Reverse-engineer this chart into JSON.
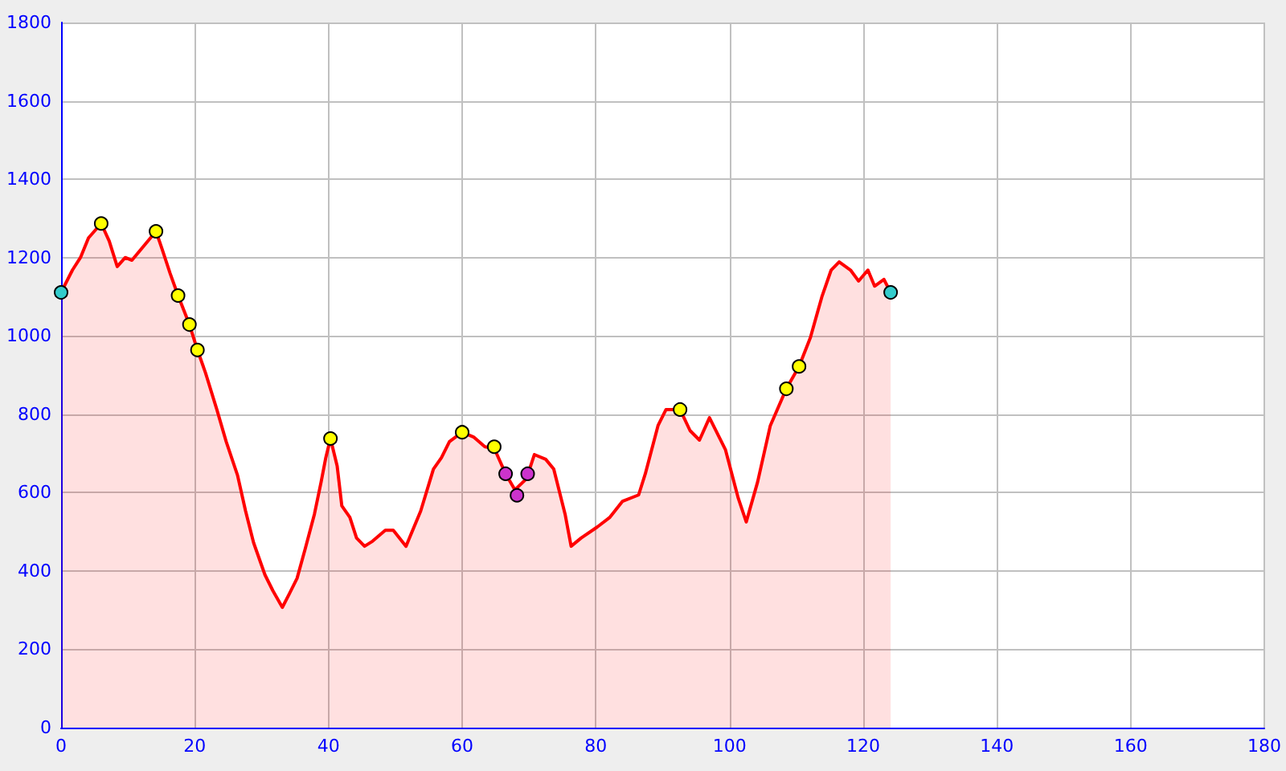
{
  "chart_data": {
    "type": "area",
    "xlim": [
      0,
      180
    ],
    "xticks": [
      0,
      20,
      40,
      60,
      80,
      100,
      120,
      140,
      160,
      180
    ],
    "ylim": [
      0,
      1800
    ],
    "yticks": [
      0,
      200,
      400,
      600,
      800,
      1000,
      1200,
      1400,
      1600,
      1800
    ],
    "grid": true,
    "series": [
      {
        "color": "#ff0000",
        "x": [
          0,
          1.7,
          2.9,
          4.1,
          6,
          7.2,
          8.4,
          9.6,
          10.6,
          12,
          14.2,
          15.1,
          16.3,
          17.5,
          19.2,
          20.4,
          21.6,
          23.3,
          24.7,
          26.4,
          27.6,
          28.8,
          30.5,
          31.7,
          33.1,
          34.1,
          35.3,
          36.5,
          37.9,
          38.9,
          39.6,
          40.3,
          41.3,
          42,
          43.2,
          44.2,
          45.4,
          46.6,
          48.5,
          49.7,
          51.6,
          53.8,
          55.7,
          56.9,
          58.1,
          60,
          61.7,
          63.4,
          64.8,
          66.5,
          67.9,
          69.6,
          70.8,
          72.5,
          73.7,
          75.4,
          76.3,
          77.8,
          80.2,
          82.1,
          84,
          86.4,
          87.4,
          89.3,
          90.5,
          92.6,
          94.1,
          95.5,
          97,
          99.4,
          101.3,
          102.5,
          104.2,
          106.1,
          108.5,
          110.4,
          112.1,
          113.8,
          115.2,
          116.4,
          118.1,
          119.3,
          120.7,
          121.7,
          123.1,
          124.1
        ],
        "values": [
          1111,
          1168,
          1200,
          1250,
          1287,
          1242,
          1177,
          1200,
          1193,
          1222,
          1267,
          1222,
          1160,
          1103,
          1029,
          964,
          906,
          812,
          730,
          644,
          553,
          472,
          390,
          349,
          307,
          340,
          381,
          455,
          545,
          627,
          689,
          738,
          668,
          566,
          537,
          484,
          463,
          476,
          504,
          504,
          463,
          553,
          660,
          689,
          730,
          754,
          742,
          717,
          713,
          648,
          607,
          635,
          697,
          685,
          660,
          545,
          463,
          484,
          512,
          537,
          578,
          594,
          648,
          771,
          812,
          812,
          758,
          734,
          791,
          709,
          586,
          525,
          627,
          771,
          865,
          922,
          996,
          1099,
          1168,
          1189,
          1168,
          1140,
          1168,
          1127,
          1144,
          1111
        ]
      },
      {
        "type": "scatter",
        "marker": "circle",
        "color": "#33cccc",
        "x": [
          0,
          124.1
        ],
        "values": [
          1111,
          1111
        ]
      },
      {
        "type": "scatter",
        "marker": "circle",
        "color": "#ffff00",
        "x": [
          6,
          14.2,
          17.5,
          19.2,
          20.4,
          40.3,
          60,
          64.8,
          92.6,
          108.5,
          110.4
        ],
        "values": [
          1287,
          1267,
          1103,
          1029,
          964,
          738,
          754,
          717,
          812,
          865,
          922
        ]
      },
      {
        "type": "scatter",
        "marker": "circle",
        "color": "#cc33cc",
        "x": [
          66.5,
          68.2,
          69.8
        ],
        "values": [
          648,
          593,
          648
        ]
      }
    ]
  }
}
